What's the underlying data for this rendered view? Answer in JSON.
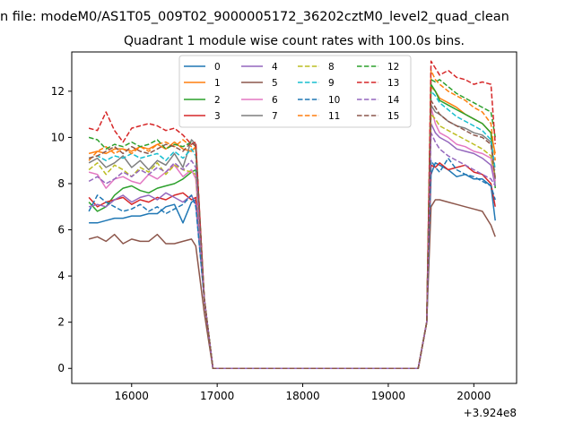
{
  "figure": {
    "suptitle": "n file: modeM0/AS1T05_009T02_9000005172_36202cztM0_level2_quad_clean",
    "title": "Quadrant 1 module wise count rates with 100.0s bins."
  },
  "chart_data": {
    "type": "line",
    "title": "Quadrant 1 module wise count rates with 100.0s bins.",
    "xlabel": "",
    "ylabel": "",
    "x_offset_label": "+3.924e8",
    "xlim": [
      15300,
      20500
    ],
    "ylim": [
      -0.65,
      13.7
    ],
    "xticks": [
      16000,
      17000,
      18000,
      19000,
      20000
    ],
    "xtick_labels": [
      "16000",
      "17000",
      "18000",
      "19000",
      "20000"
    ],
    "yticks": [
      0,
      2,
      4,
      6,
      8,
      10,
      12
    ],
    "ytick_labels": [
      "0",
      "2",
      "4",
      "6",
      "8",
      "10",
      "12"
    ],
    "grid": false,
    "legend_position": "top-center",
    "x": [
      15500,
      15600,
      15700,
      15800,
      15900,
      16000,
      16100,
      16200,
      16300,
      16400,
      16500,
      16600,
      16700,
      16750,
      16850,
      16950,
      17050,
      17200,
      17400,
      17600,
      17800,
      18000,
      18200,
      18400,
      18600,
      18800,
      19000,
      19200,
      19350,
      19450,
      19500,
      19550,
      19600,
      19700,
      19800,
      19900,
      20000,
      20100,
      20200,
      20250
    ],
    "series": [
      {
        "name": "0",
        "color": "#1f77b4",
        "dash": "solid",
        "values": [
          6.3,
          6.3,
          6.4,
          6.5,
          6.5,
          6.6,
          6.6,
          6.7,
          6.7,
          7.0,
          7.1,
          6.3,
          7.2,
          7.3,
          3.0,
          0,
          0,
          0,
          0,
          0,
          0,
          0,
          0,
          0,
          0,
          0,
          0,
          0,
          0,
          2.0,
          8.4,
          8.9,
          8.8,
          8.6,
          8.3,
          8.4,
          8.2,
          8.2,
          7.9,
          6.4
        ]
      },
      {
        "name": "1",
        "color": "#ff7f0e",
        "dash": "solid",
        "values": [
          9.3,
          9.4,
          9.3,
          9.5,
          9.5,
          9.4,
          9.6,
          9.5,
          9.7,
          9.5,
          9.8,
          9.5,
          9.4,
          9.6,
          3.0,
          0,
          0,
          0,
          0,
          0,
          0,
          0,
          0,
          0,
          0,
          0,
          0,
          0,
          0,
          2.0,
          12.2,
          12.0,
          11.7,
          11.5,
          11.3,
          11.0,
          10.8,
          10.6,
          10.2,
          9.3
        ]
      },
      {
        "name": "2",
        "color": "#2ca02c",
        "dash": "solid",
        "values": [
          7.2,
          6.8,
          7.0,
          7.5,
          7.8,
          7.9,
          7.7,
          7.6,
          7.8,
          7.9,
          8.0,
          8.2,
          8.5,
          8.6,
          3.0,
          0,
          0,
          0,
          0,
          0,
          0,
          0,
          0,
          0,
          0,
          0,
          0,
          0,
          0,
          2.0,
          12.3,
          12.0,
          11.6,
          11.4,
          11.2,
          11.0,
          10.8,
          10.6,
          10.2,
          7.8
        ]
      },
      {
        "name": "3",
        "color": "#d62728",
        "dash": "solid",
        "values": [
          7.4,
          7.0,
          7.2,
          7.3,
          7.4,
          7.1,
          7.3,
          7.2,
          7.4,
          7.3,
          7.5,
          7.6,
          7.3,
          7.4,
          3.0,
          0,
          0,
          0,
          0,
          0,
          0,
          0,
          0,
          0,
          0,
          0,
          0,
          0,
          0,
          2.0,
          8.8,
          8.7,
          8.9,
          8.6,
          8.7,
          8.8,
          8.5,
          8.4,
          8.0,
          7.0
        ]
      },
      {
        "name": "4",
        "color": "#9467bd",
        "dash": "solid",
        "values": [
          7.0,
          7.1,
          7.0,
          7.3,
          7.5,
          7.2,
          7.4,
          7.5,
          7.3,
          7.6,
          7.4,
          7.2,
          7.5,
          7.1,
          3.0,
          0,
          0,
          0,
          0,
          0,
          0,
          0,
          0,
          0,
          0,
          0,
          0,
          0,
          0,
          2.0,
          10.6,
          10.2,
          10.0,
          9.8,
          9.5,
          9.4,
          9.3,
          9.1,
          8.8,
          7.9
        ]
      },
      {
        "name": "5",
        "color": "#8c564b",
        "dash": "solid",
        "values": [
          5.6,
          5.7,
          5.5,
          5.8,
          5.4,
          5.6,
          5.5,
          5.5,
          5.8,
          5.4,
          5.4,
          5.5,
          5.6,
          5.3,
          2.4,
          0,
          0,
          0,
          0,
          0,
          0,
          0,
          0,
          0,
          0,
          0,
          0,
          0,
          0,
          2.0,
          7.0,
          7.3,
          7.3,
          7.2,
          7.1,
          7.0,
          6.9,
          6.8,
          6.2,
          5.7
        ]
      },
      {
        "name": "6",
        "color": "#e377c2",
        "dash": "solid",
        "values": [
          8.5,
          8.4,
          7.8,
          8.2,
          8.3,
          8.1,
          8.0,
          8.4,
          8.2,
          8.5,
          8.8,
          8.3,
          8.6,
          8.2,
          3.0,
          0,
          0,
          0,
          0,
          0,
          0,
          0,
          0,
          0,
          0,
          0,
          0,
          0,
          0,
          2.0,
          11.3,
          10.6,
          10.2,
          10.0,
          9.7,
          9.6,
          9.4,
          9.3,
          9.1,
          8.1
        ]
      },
      {
        "name": "7",
        "color": "#7f7f7f",
        "dash": "solid",
        "values": [
          8.9,
          9.1,
          8.7,
          8.9,
          9.2,
          8.7,
          9.0,
          8.6,
          9.0,
          8.8,
          9.3,
          8.7,
          9.9,
          9.7,
          3.0,
          0,
          0,
          0,
          0,
          0,
          0,
          0,
          0,
          0,
          0,
          0,
          0,
          0,
          0,
          2.0,
          11.4,
          11.1,
          11.0,
          10.7,
          10.5,
          10.4,
          10.2,
          10.1,
          9.8,
          8.2
        ]
      },
      {
        "name": "8",
        "color": "#bcbd22",
        "dash": "dashed",
        "values": [
          8.6,
          8.9,
          8.4,
          8.8,
          8.6,
          8.3,
          8.7,
          8.5,
          8.9,
          8.4,
          8.8,
          8.6,
          8.5,
          8.4,
          3.0,
          0,
          0,
          0,
          0,
          0,
          0,
          0,
          0,
          0,
          0,
          0,
          0,
          0,
          0,
          2.0,
          11.0,
          10.8,
          10.5,
          10.3,
          10.1,
          9.9,
          9.7,
          9.5,
          9.2,
          8.3
        ]
      },
      {
        "name": "9",
        "color": "#17becf",
        "dash": "dashed",
        "values": [
          9.1,
          9.2,
          9.0,
          9.2,
          9.1,
          9.3,
          9.1,
          9.2,
          9.3,
          9.0,
          9.4,
          9.1,
          9.5,
          9.2,
          3.0,
          0,
          0,
          0,
          0,
          0,
          0,
          0,
          0,
          0,
          0,
          0,
          0,
          0,
          0,
          2.0,
          12.0,
          11.8,
          11.5,
          11.2,
          10.9,
          10.7,
          10.5,
          10.3,
          9.9,
          8.6
        ]
      },
      {
        "name": "10",
        "color": "#1f77b4",
        "dash": "dashed",
        "values": [
          6.8,
          7.5,
          7.2,
          7.0,
          6.8,
          6.9,
          7.1,
          6.8,
          7.0,
          6.7,
          6.9,
          7.1,
          7.5,
          7.0,
          3.0,
          0,
          0,
          0,
          0,
          0,
          0,
          0,
          0,
          0,
          0,
          0,
          0,
          0,
          0,
          2.0,
          9.0,
          8.7,
          8.5,
          9.1,
          8.6,
          8.4,
          8.3,
          8.1,
          7.9,
          7.3
        ]
      },
      {
        "name": "11",
        "color": "#ff7f0e",
        "dash": "dashed",
        "values": [
          9.0,
          9.4,
          9.6,
          9.3,
          9.5,
          9.3,
          9.6,
          9.4,
          9.7,
          9.8,
          9.6,
          9.9,
          9.6,
          9.5,
          3.0,
          0,
          0,
          0,
          0,
          0,
          0,
          0,
          0,
          0,
          0,
          0,
          0,
          0,
          0,
          2.0,
          12.9,
          12.5,
          12.3,
          12.0,
          11.8,
          11.6,
          11.3,
          11.1,
          10.6,
          9.0
        ]
      },
      {
        "name": "12",
        "color": "#2ca02c",
        "dash": "dashed",
        "values": [
          10.0,
          9.9,
          9.5,
          9.7,
          9.6,
          9.8,
          9.6,
          9.7,
          9.9,
          9.5,
          9.7,
          9.6,
          9.8,
          9.6,
          3.0,
          0,
          0,
          0,
          0,
          0,
          0,
          0,
          0,
          0,
          0,
          0,
          0,
          0,
          0,
          2.0,
          12.5,
          12.4,
          12.5,
          12.2,
          11.9,
          11.7,
          11.5,
          11.3,
          11.1,
          10.0
        ]
      },
      {
        "name": "13",
        "color": "#d62728",
        "dash": "dashed",
        "values": [
          10.4,
          10.3,
          11.1,
          10.3,
          9.8,
          10.4,
          10.5,
          10.6,
          10.5,
          10.3,
          10.4,
          10.1,
          9.7,
          9.8,
          3.0,
          0,
          0,
          0,
          0,
          0,
          0,
          0,
          0,
          0,
          0,
          0,
          0,
          0,
          0,
          2.0,
          13.3,
          13.0,
          12.7,
          12.9,
          12.6,
          12.5,
          12.3,
          12.4,
          12.3,
          9.7
        ]
      },
      {
        "name": "14",
        "color": "#9467bd",
        "dash": "dashed",
        "values": [
          8.1,
          8.3,
          8.0,
          8.2,
          8.5,
          8.3,
          8.6,
          8.4,
          8.7,
          8.5,
          8.9,
          8.6,
          9.0,
          8.7,
          3.0,
          0,
          0,
          0,
          0,
          0,
          0,
          0,
          0,
          0,
          0,
          0,
          0,
          0,
          0,
          2.0,
          10.2,
          9.8,
          9.5,
          9.2,
          9.0,
          8.8,
          8.6,
          8.4,
          8.2,
          7.9
        ]
      },
      {
        "name": "15",
        "color": "#8c564b",
        "dash": "dashed",
        "values": [
          9.1,
          9.2,
          9.4,
          9.6,
          9.3,
          9.6,
          9.4,
          9.3,
          9.5,
          9.7,
          9.6,
          9.4,
          9.8,
          9.6,
          3.0,
          0,
          0,
          0,
          0,
          0,
          0,
          0,
          0,
          0,
          0,
          0,
          0,
          0,
          0,
          2.0,
          11.6,
          11.3,
          11.0,
          10.7,
          10.5,
          10.3,
          10.1,
          10.0,
          9.7,
          8.2
        ]
      }
    ]
  }
}
